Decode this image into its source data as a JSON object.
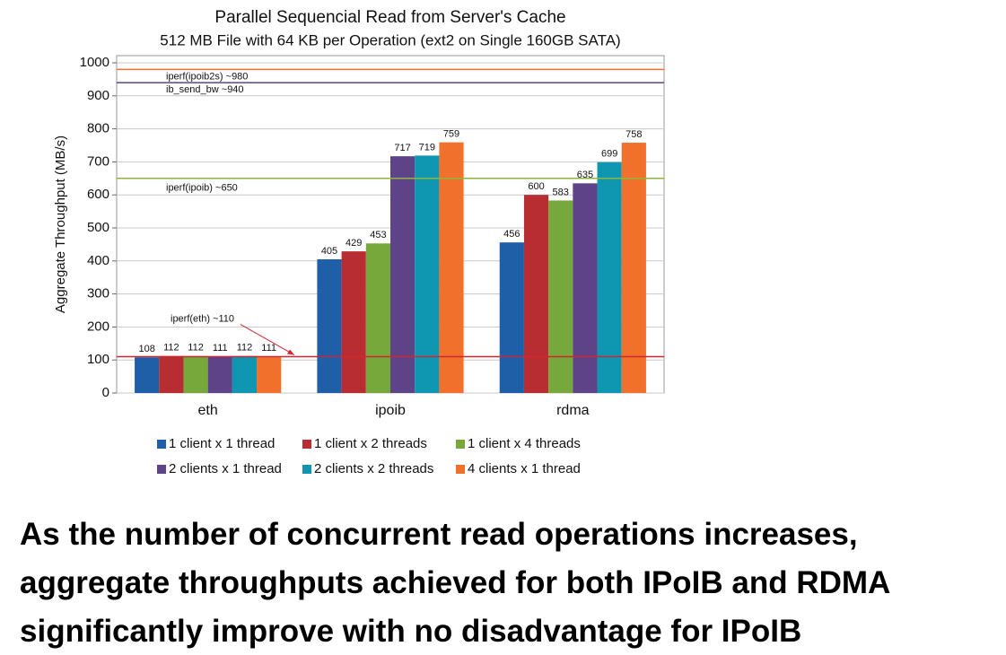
{
  "chart_data": {
    "type": "bar",
    "title": "Parallel Sequencial Read from Server's Cache",
    "subtitle": "512 MB File with 64 KB per Operation (ext2 on Single 160GB SATA)",
    "y_label": "Aggregate Throughput (MB/s)",
    "categories": [
      "eth",
      "ipoib",
      "rdma"
    ],
    "series": [
      {
        "name": "1 client x 1 thread",
        "color": "#1f5fa8",
        "values": [
          108,
          405,
          456
        ]
      },
      {
        "name": "1 client x 2 threads",
        "color": "#b82d31",
        "values": [
          112,
          429,
          600
        ]
      },
      {
        "name": "1 client x 4 threads",
        "color": "#77a83b",
        "values": [
          112,
          453,
          583
        ]
      },
      {
        "name": "2 clients x 1 thread",
        "color": "#5e4388",
        "values": [
          111,
          717,
          635
        ]
      },
      {
        "name": "2 clients x 2 threads",
        "color": "#0f96b0",
        "values": [
          112,
          719,
          699
        ]
      },
      {
        "name": "4 clients x 1 thread",
        "color": "#f0702c",
        "values": [
          111,
          759,
          758
        ]
      }
    ],
    "reference_lines": [
      {
        "label": "iperf(ipoib2s) ~980",
        "value": 980,
        "color": "#f0702c"
      },
      {
        "label": "ib_send_bw ~940",
        "value": 940,
        "color": "#5e4388"
      },
      {
        "label": "iperf(ipoib) ~650",
        "value": 650,
        "color": "#8fb63c"
      },
      {
        "label": "iperf(eth) ~110",
        "value": 110,
        "color": "#d0272f"
      }
    ],
    "ylim": [
      0,
      1000
    ],
    "yticks": [
      0,
      100,
      200,
      300,
      400,
      500,
      600,
      700,
      800,
      900,
      1000
    ],
    "grid": true
  },
  "caption_lines": [
    "As the number of concurrent read operations increases,",
    "aggregate throughputs achieved for both IPoIB and RDMA",
    "significantly improve with no disadvantage for IPoIB"
  ]
}
